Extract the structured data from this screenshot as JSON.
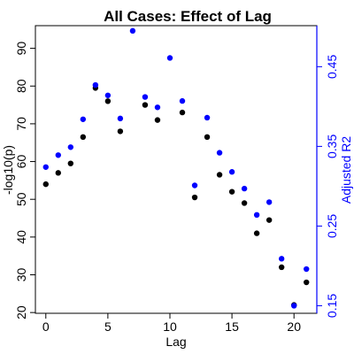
{
  "chart_data": {
    "type": "scatter",
    "title": "All Cases: Effect of Lag",
    "xlabel": "Lag",
    "ylabel_left": "-log10(p)",
    "ylabel_right": "Adjusted R2",
    "xlim": [
      -0.84,
      21.84
    ],
    "ylim_left": [
      19.8,
      96.0
    ],
    "ylim_right": [
      0.1405,
      0.5015
    ],
    "x_ticks": [
      "0",
      "5",
      "10",
      "15",
      "20"
    ],
    "y_left_ticks": [
      "20",
      "30",
      "40",
      "50",
      "60",
      "70",
      "80",
      "90"
    ],
    "y_right_ticks": [
      "0.15",
      "0.25",
      "0.35",
      "0.45"
    ],
    "grid": false,
    "colors": {
      "left_series": "#000000",
      "right_series": "#0000ff",
      "right_axis": "#0000ff"
    },
    "series": [
      {
        "axis": "left",
        "x": [
          0,
          1,
          2,
          3,
          4,
          5,
          6,
          8,
          9,
          11,
          12,
          13,
          14,
          15,
          16,
          17,
          18,
          19,
          20,
          21
        ],
        "values": [
          54,
          57,
          59.5,
          66.5,
          79.5,
          76,
          68,
          75,
          71,
          73,
          50.5,
          66.5,
          56.5,
          52,
          49,
          41,
          44.5,
          32,
          22,
          28
        ]
      },
      {
        "axis": "right",
        "x": [
          0,
          1,
          2,
          3,
          4,
          5,
          6,
          7,
          8,
          9,
          10,
          11,
          12,
          13,
          14,
          15,
          16,
          17,
          18,
          19,
          20,
          21
        ],
        "values": [
          0.324,
          0.339,
          0.349,
          0.384,
          0.427,
          0.414,
          0.385,
          0.495,
          0.412,
          0.399,
          0.461,
          0.407,
          0.301,
          0.386,
          0.342,
          0.318,
          0.297,
          0.264,
          0.28,
          0.209,
          0.15,
          0.196
        ]
      }
    ]
  }
}
